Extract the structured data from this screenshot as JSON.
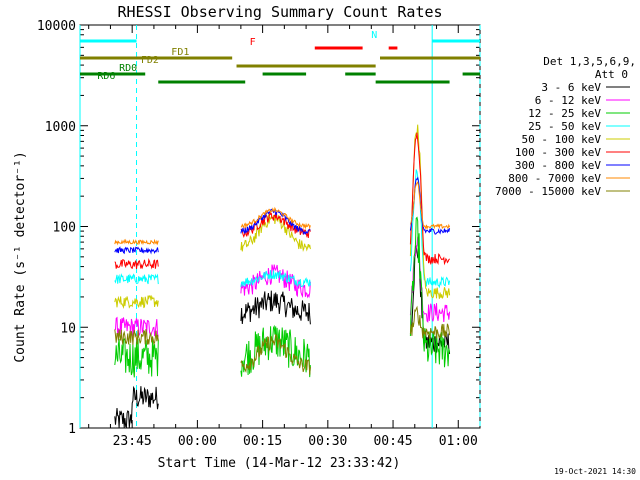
{
  "chart_data": {
    "type": "line",
    "title": "RHESSI Observing Summary Count Rates",
    "xlabel": "Start Time (14-Mar-12 23:33:42)",
    "ylabel": "Count Rate (s⁻¹ detector⁻¹)",
    "yscale": "log",
    "ylim": [
      1,
      10000
    ],
    "xlim_min": [
      -12,
      80
    ],
    "x_ticks": [
      {
        "min": 0,
        "label": "23:45"
      },
      {
        "min": 15,
        "label": "00:00"
      },
      {
        "min": 30,
        "label": "00:15"
      },
      {
        "min": 45,
        "label": "00:30"
      },
      {
        "min": 60,
        "label": "00:45"
      },
      {
        "min": 75,
        "label": "01:00"
      }
    ],
    "y_ticks": [
      {
        "value": 1,
        "label": "1"
      },
      {
        "value": 10,
        "label": "10"
      },
      {
        "value": 100,
        "label": "100"
      },
      {
        "value": 1000,
        "label": "1000"
      },
      {
        "value": 10000,
        "label": "10000"
      }
    ],
    "legend": {
      "title_line1": "Det 1,3,5,6,9,",
      "title_line2": "Att 0",
      "placement": "right"
    },
    "footer_timestamp": "19-Oct-2021 14:30",
    "data_segments": [
      [
        -4,
        6
      ],
      [
        25,
        41
      ],
      [
        64,
        73
      ]
    ],
    "peak_min": 65.5,
    "series": [
      {
        "name": "3 - 6 keV",
        "color": "#000000",
        "base": [
          2,
          14,
          7
        ],
        "bump": 1.3,
        "peak": 60,
        "noise": 0.12
      },
      {
        "name": "6 - 12 keV",
        "color": "#ff00ff",
        "base": [
          10,
          24,
          14
        ],
        "bump": 1.4,
        "peak": 75,
        "noise": 0.1
      },
      {
        "name": "12 - 25 keV",
        "color": "#00cc00",
        "base": [
          5,
          5,
          6
        ],
        "bump": 1.5,
        "peak": 80,
        "noise": 0.2
      },
      {
        "name": "25 - 50 keV",
        "color": "#00ffff",
        "base": [
          30,
          28,
          28
        ],
        "bump": 1.2,
        "peak": 350,
        "noise": 0.05
      },
      {
        "name": "50 - 100 keV",
        "color": "#cccc00",
        "base": [
          18,
          60,
          22
        ],
        "bump": 2.0,
        "peak": 950,
        "noise": 0.06
      },
      {
        "name": "100 - 300 keV",
        "color": "#ff0000",
        "base": [
          42,
          85,
          48
        ],
        "bump": 1.5,
        "peak": 800,
        "noise": 0.05
      },
      {
        "name": "300 - 800 keV",
        "color": "#0000ff",
        "base": [
          58,
          88,
          90
        ],
        "bump": 1.6,
        "peak": 300,
        "noise": 0.03
      },
      {
        "name": "800 - 7000 keV",
        "color": "#ff8800",
        "base": [
          70,
          100,
          100
        ],
        "bump": 1.45,
        "peak": 280,
        "noise": 0.02
      },
      {
        "name": "7000 - 15000 keV",
        "color": "#808000",
        "base": [
          8,
          4,
          9
        ],
        "bump": 1.8,
        "peak": 14,
        "noise": 0.08
      }
    ],
    "status_flags": [
      {
        "label": "N",
        "color": "#00ffff",
        "segments": [
          [
            -12,
            1
          ],
          [
            69,
            80
          ]
        ]
      },
      {
        "label": "F",
        "color": "#ff0000",
        "segments": [
          [
            42,
            53
          ],
          [
            59,
            61
          ]
        ]
      },
      {
        "label": "FD1",
        "color": "#808000",
        "segments": [
          [
            -12,
            23
          ],
          [
            57,
            80
          ]
        ]
      },
      {
        "label": "FD2",
        "color": "#808000",
        "segments": [
          [
            24,
            56
          ]
        ]
      },
      {
        "label": "RD0",
        "color": "#008000",
        "segments": [
          [
            -12,
            3
          ],
          [
            30,
            40
          ],
          [
            49,
            56
          ],
          [
            76,
            80
          ]
        ]
      },
      {
        "label": "RD6",
        "color": "#008000",
        "segments": [
          [
            6,
            26
          ],
          [
            56,
            73
          ]
        ]
      }
    ],
    "vertical_markers": [
      {
        "min": -12,
        "color": "#00ffff",
        "style": "solid"
      },
      {
        "min": 1,
        "color": "#00ffff",
        "style": "dashed"
      },
      {
        "min": 69,
        "color": "#00ffff",
        "style": "solid"
      },
      {
        "min": 80,
        "color": "#00ffff",
        "style": "dashed"
      }
    ]
  }
}
